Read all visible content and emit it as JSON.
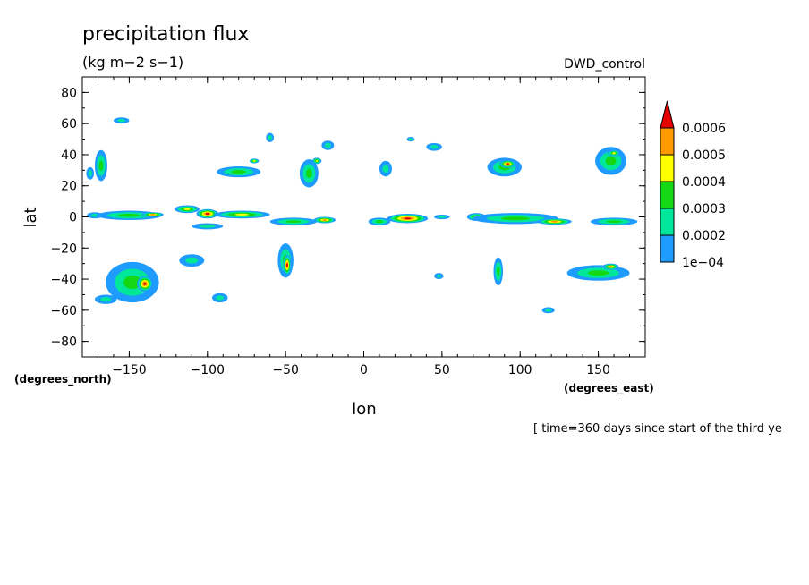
{
  "chart_data": {
    "type": "heatmap",
    "title": "precipitation flux",
    "units": "(kg m−2 s−1)",
    "run_label": "DWD_control",
    "xlabel": "lon",
    "ylabel": "lat",
    "x_units": "(degrees_east)",
    "y_units": "(degrees_north)",
    "footnote": "[ time=360 days since start of the third ye",
    "xlim": [
      -180,
      180
    ],
    "ylim": [
      -90,
      90
    ],
    "x_ticks": [
      -150,
      -100,
      -50,
      0,
      50,
      100,
      150
    ],
    "x_tick_labels": [
      "−150",
      "−100",
      "−50",
      "0",
      "50",
      "100",
      "150"
    ],
    "y_ticks": [
      -80,
      -60,
      -40,
      -20,
      0,
      20,
      40,
      60,
      80
    ],
    "y_tick_labels": [
      "−80",
      "−60",
      "−40",
      "−20",
      "0",
      "20",
      "40",
      "60",
      "80"
    ],
    "colorbar": {
      "levels": [
        0.0001,
        0.0002,
        0.0003,
        0.0004,
        0.0005,
        0.0006
      ],
      "labels": [
        "1e−04",
        "0.0002",
        "0.0003",
        "0.0004",
        "0.0005",
        "0.0006"
      ],
      "colors": [
        "#1e9bff",
        "#00e69a",
        "#14d814",
        "#ffff00",
        "#ff9a00",
        "#e60000"
      ],
      "extend": "max"
    },
    "features": [
      {
        "lon": -172,
        "lat": 1,
        "w": 10,
        "h": 4,
        "lvl": 1
      },
      {
        "lon": -150,
        "lat": 1,
        "w": 42,
        "h": 6,
        "lvl": 2
      },
      {
        "lon": -135,
        "lat": 1.5,
        "w": 14,
        "h": 3,
        "lvl": 4
      },
      {
        "lon": -113,
        "lat": 5,
        "w": 16,
        "h": 5,
        "lvl": 3
      },
      {
        "lon": -100,
        "lat": 2,
        "w": 14,
        "h": 6,
        "lvl": 5
      },
      {
        "lon": -78,
        "lat": 1.5,
        "w": 36,
        "h": 5,
        "lvl": 3
      },
      {
        "lon": -45,
        "lat": -3,
        "w": 30,
        "h": 5,
        "lvl": 2
      },
      {
        "lon": -25,
        "lat": -2,
        "w": 14,
        "h": 4,
        "lvl": 4
      },
      {
        "lon": 10,
        "lat": -3,
        "w": 14,
        "h": 5,
        "lvl": 2
      },
      {
        "lon": 28,
        "lat": -1,
        "w": 26,
        "h": 6,
        "lvl": 5
      },
      {
        "lon": 50,
        "lat": 0,
        "w": 10,
        "h": 3,
        "lvl": 1
      },
      {
        "lon": 72,
        "lat": 0,
        "w": 12,
        "h": 5,
        "lvl": 3
      },
      {
        "lon": 97,
        "lat": -1,
        "w": 55,
        "h": 7,
        "lvl": 2
      },
      {
        "lon": 122,
        "lat": -3,
        "w": 22,
        "h": 4,
        "lvl": 4
      },
      {
        "lon": 160,
        "lat": -3,
        "w": 30,
        "h": 5,
        "lvl": 2
      },
      {
        "lon": -168,
        "lat": 33,
        "w": 8,
        "h": 20,
        "lvl": 2
      },
      {
        "lon": -175,
        "lat": 28,
        "w": 5,
        "h": 8,
        "lvl": 1
      },
      {
        "lon": -155,
        "lat": 62,
        "w": 10,
        "h": 4,
        "lvl": 1
      },
      {
        "lon": -80,
        "lat": 29,
        "w": 28,
        "h": 7,
        "lvl": 2
      },
      {
        "lon": -70,
        "lat": 36,
        "w": 6,
        "h": 3,
        "lvl": 3
      },
      {
        "lon": -35,
        "lat": 28,
        "w": 12,
        "h": 18,
        "lvl": 2
      },
      {
        "lon": -30,
        "lat": 36,
        "w": 6,
        "h": 4,
        "lvl": 3
      },
      {
        "lon": -60,
        "lat": 51,
        "w": 5,
        "h": 6,
        "lvl": 1
      },
      {
        "lon": -23,
        "lat": 46,
        "w": 8,
        "h": 6,
        "lvl": 1
      },
      {
        "lon": 14,
        "lat": 31,
        "w": 8,
        "h": 10,
        "lvl": 1
      },
      {
        "lon": 45,
        "lat": 45,
        "w": 10,
        "h": 5,
        "lvl": 1
      },
      {
        "lon": 30,
        "lat": 50,
        "w": 5,
        "h": 3,
        "lvl": 1
      },
      {
        "lon": 90,
        "lat": 32,
        "w": 22,
        "h": 12,
        "lvl": 2
      },
      {
        "lon": 92,
        "lat": 34,
        "w": 10,
        "h": 5,
        "lvl": 5
      },
      {
        "lon": 158,
        "lat": 36,
        "w": 20,
        "h": 18,
        "lvl": 2
      },
      {
        "lon": 160,
        "lat": 41,
        "w": 8,
        "h": 4,
        "lvl": 3
      },
      {
        "lon": -148,
        "lat": -42,
        "w": 34,
        "h": 26,
        "lvl": 2
      },
      {
        "lon": -140,
        "lat": -43,
        "w": 10,
        "h": 10,
        "lvl": 5
      },
      {
        "lon": -165,
        "lat": -53,
        "w": 14,
        "h": 6,
        "lvl": 1
      },
      {
        "lon": -110,
        "lat": -28,
        "w": 16,
        "h": 8,
        "lvl": 1
      },
      {
        "lon": -92,
        "lat": -52,
        "w": 10,
        "h": 6,
        "lvl": 1
      },
      {
        "lon": -50,
        "lat": -28,
        "w": 10,
        "h": 22,
        "lvl": 2
      },
      {
        "lon": -49,
        "lat": -31,
        "w": 5,
        "h": 13,
        "lvl": 5
      },
      {
        "lon": 48,
        "lat": -38,
        "w": 6,
        "h": 4,
        "lvl": 1
      },
      {
        "lon": 86,
        "lat": -35,
        "w": 6,
        "h": 18,
        "lvl": 2
      },
      {
        "lon": 150,
        "lat": -36,
        "w": 40,
        "h": 10,
        "lvl": 2
      },
      {
        "lon": 158,
        "lat": -32,
        "w": 10,
        "h": 4,
        "lvl": 4
      },
      {
        "lon": 118,
        "lat": -60,
        "w": 8,
        "h": 4,
        "lvl": 1
      },
      {
        "lon": -100,
        "lat": -6,
        "w": 20,
        "h": 4,
        "lvl": 1
      }
    ]
  }
}
